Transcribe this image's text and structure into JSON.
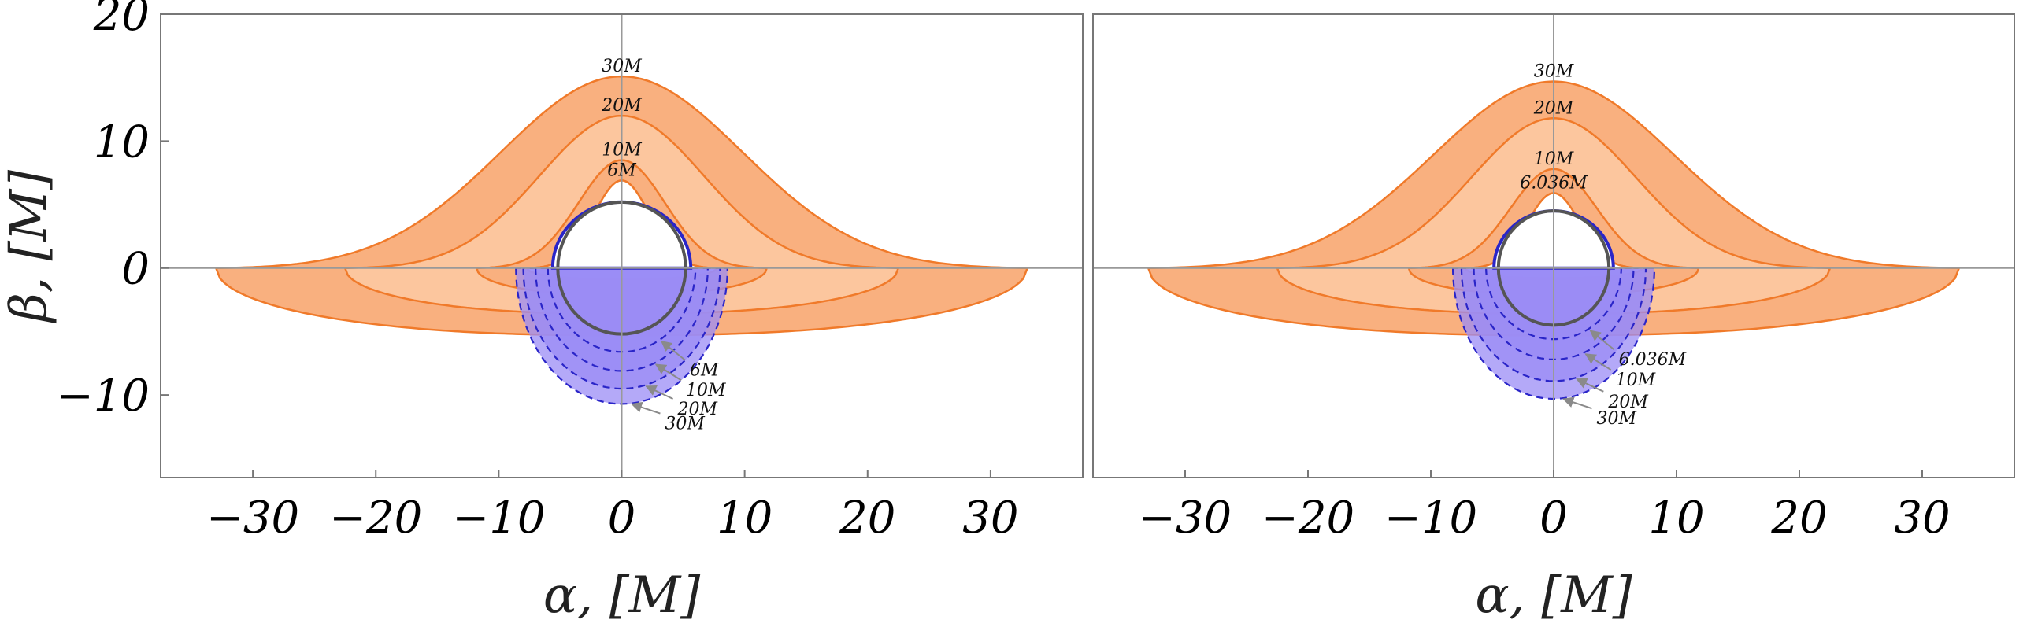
{
  "chart_data": [
    {
      "type": "area",
      "panel": "left",
      "xlabel": "α, [M]",
      "ylabel": "β, [M]",
      "xlim": [
        -37.5,
        37.5
      ],
      "ylim": [
        -16.5,
        20
      ],
      "xticks": [
        -30,
        -20,
        -10,
        0,
        10,
        20,
        30
      ],
      "yticks": [
        -10,
        0,
        10,
        20
      ],
      "xtick_labels": [
        "−30",
        "−20",
        "−10",
        "0",
        "10",
        "20",
        "30"
      ],
      "ytick_labels": [
        "−10",
        "0",
        "10",
        "20"
      ],
      "shadow_radius": 5.2,
      "direct_images": [
        {
          "label": "30M",
          "half_width": 33,
          "top": 15.1,
          "bottom": -5.3
        },
        {
          "label": "20M",
          "half_width": 22.5,
          "top": 12.0,
          "bottom": -3.6
        },
        {
          "label": "10M",
          "half_width": 11.8,
          "top": 8.5,
          "bottom": -2.1
        },
        {
          "label": "6M",
          "half_width": 7.7,
          "top": 6.9,
          "bottom": -0.9
        }
      ],
      "secondary_images": [
        {
          "label": "6M",
          "rx": 6.0,
          "bottom": -6.6
        },
        {
          "label": "10M",
          "rx": 7.0,
          "bottom": -8.1
        },
        {
          "label": "20M",
          "rx": 8.0,
          "bottom": -9.5
        },
        {
          "label": "30M",
          "rx": 8.6,
          "bottom": -10.7
        }
      ]
    },
    {
      "type": "area",
      "panel": "right",
      "xlabel": "α, [M]",
      "ylabel": "",
      "xlim": [
        -37.5,
        37.5
      ],
      "ylim": [
        -16.5,
        20
      ],
      "xticks": [
        -30,
        -20,
        -10,
        0,
        10,
        20,
        30
      ],
      "xtick_labels": [
        "−30",
        "−20",
        "−10",
        "0",
        "10",
        "20",
        "30"
      ],
      "shadow_radius": 4.5,
      "direct_images": [
        {
          "label": "30M",
          "half_width": 33,
          "top": 14.7,
          "bottom": -5.3
        },
        {
          "label": "20M",
          "half_width": 22.5,
          "top": 11.8,
          "bottom": -3.6
        },
        {
          "label": "10M",
          "half_width": 11.8,
          "top": 7.8,
          "bottom": -2.1
        },
        {
          "label": "6.036M",
          "half_width": 7.2,
          "top": 5.9,
          "bottom": -0.8
        }
      ],
      "secondary_images": [
        {
          "label": "6.036M",
          "rx": 5.5,
          "bottom": -5.6
        },
        {
          "label": "10M",
          "rx": 6.5,
          "bottom": -7.2
        },
        {
          "label": "20M",
          "rx": 7.5,
          "bottom": -8.9
        },
        {
          "label": "30M",
          "rx": 8.2,
          "bottom": -10.3
        }
      ]
    }
  ],
  "colors": {
    "outer_fill": "#f9b07f",
    "inner_fill": "#fcc69e",
    "orange_line": "#f07a2a",
    "blue_fill": "#9b8cf5",
    "blue_line": "#2a25c8",
    "shadow_line": "#555555",
    "frame": "#777777",
    "zero_line": "#999999",
    "arrow": "#8a8a8a"
  }
}
